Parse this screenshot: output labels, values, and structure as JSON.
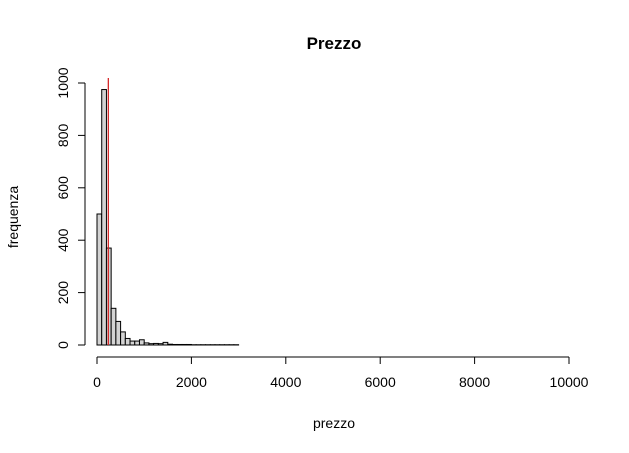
{
  "chart_data": {
    "type": "bar",
    "title": "Prezzo",
    "xlabel": "prezzo",
    "ylabel": "frequenza",
    "xlim": [
      0,
      10000
    ],
    "ylim": [
      0,
      1000
    ],
    "x_ticks": [
      0,
      2000,
      4000,
      6000,
      8000,
      10000
    ],
    "y_ticks": [
      0,
      200,
      400,
      600,
      800,
      1000
    ],
    "bin_width": 100,
    "bin_start": 0,
    "values": [
      500,
      975,
      370,
      140,
      90,
      50,
      25,
      15,
      15,
      20,
      8,
      5,
      6,
      5,
      10,
      3,
      2,
      2,
      2,
      2,
      1,
      1,
      1,
      1,
      1,
      1,
      1,
      1,
      1,
      1,
      0,
      0,
      0,
      0,
      0,
      0,
      0,
      0,
      0,
      0,
      0,
      0,
      0,
      0,
      0,
      0,
      0,
      0,
      0,
      0,
      0,
      0,
      0,
      0,
      0,
      0,
      0,
      0,
      0,
      0,
      0,
      0,
      0,
      0,
      0,
      0,
      0,
      0,
      0,
      0,
      0,
      0,
      0,
      0,
      0,
      0,
      0,
      0,
      0,
      0,
      0,
      0,
      0,
      0,
      0,
      0,
      0,
      0,
      0,
      0,
      0,
      0,
      0,
      0,
      0,
      0,
      0,
      0,
      0,
      0
    ],
    "reference_line": {
      "x": 240,
      "color": "#d62728"
    },
    "bar_fill": "#d3d3d3",
    "bar_stroke": "#000000",
    "grid": false
  }
}
